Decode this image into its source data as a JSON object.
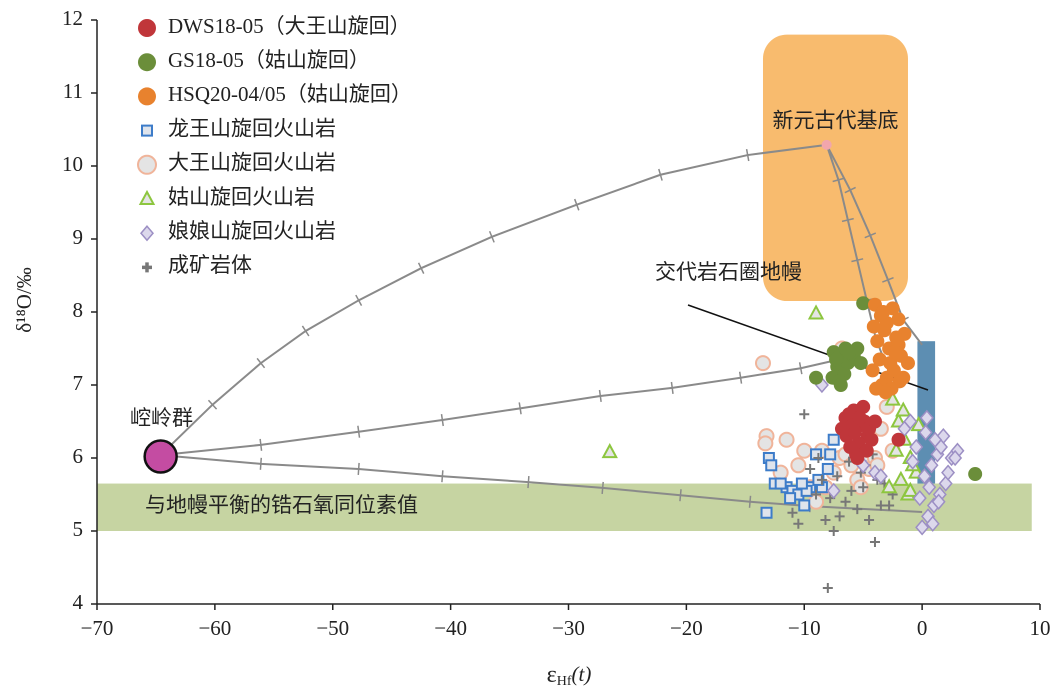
{
  "chart_data": {
    "type": "scatter",
    "xlim": [
      -70,
      10
    ],
    "ylim": [
      4,
      12
    ],
    "xticks": [
      {
        "value": -70,
        "label": "−70"
      },
      {
        "value": -60,
        "label": "−60"
      },
      {
        "value": -50,
        "label": "−50"
      },
      {
        "value": -40,
        "label": "−40"
      },
      {
        "value": -30,
        "label": "−30"
      },
      {
        "value": -20,
        "label": "−20"
      },
      {
        "value": -10,
        "label": "−10"
      },
      0,
      10
    ],
    "yticks": [
      4,
      5,
      6,
      7,
      8,
      9,
      10,
      11,
      12
    ],
    "x_label": {
      "symbol": "ε",
      "subscript": "Hf",
      "suffix": "(t)"
    },
    "y_label": "δ¹⁸O/‰",
    "regions": [
      {
        "label": "新元古代基底",
        "color": "#f8bb6e",
        "xlim": [
          -13.5,
          -1.2
        ],
        "ylim": [
          8.15,
          11.8
        ]
      },
      {
        "label": "与地幔平衡的锆石氧同位素值",
        "color": "#c6d4a2",
        "xlim": [
          -70,
          9.3
        ],
        "ylim": [
          5.0,
          5.65
        ]
      },
      {
        "color": "#5d8eb2",
        "xlim": [
          -0.4,
          1.1
        ],
        "ylim": [
          5.65,
          7.6
        ]
      }
    ],
    "curves": [
      {
        "color": "#8a8a8a",
        "x": [
          -64.6,
          -60.2,
          -56.1,
          -52.3,
          -47.8,
          -42.5,
          -36.5,
          -29.3,
          -22.2,
          -14.8,
          -8.1
        ],
        "values": [
          6.04,
          6.73,
          7.3,
          7.74,
          8.16,
          8.6,
          9.03,
          9.47,
          9.88,
          10.15,
          10.29
        ]
      },
      {
        "color": "#8a8a8a",
        "x": [
          -64.6,
          -56.1,
          -47.8,
          -40.7,
          -34.1,
          -27.3,
          -21.2,
          -15.4,
          -10.3,
          -6.5
        ],
        "values": [
          6.04,
          6.18,
          6.36,
          6.52,
          6.68,
          6.85,
          6.96,
          7.1,
          7.23,
          7.37
        ]
      },
      {
        "color": "#8a8a8a",
        "x": [
          -64.6,
          -56.1,
          -47.8,
          -40.7,
          -33.4,
          -27.1,
          -20.5,
          -14.6,
          -9.5,
          0
        ],
        "values": [
          6.04,
          5.92,
          5.85,
          5.75,
          5.67,
          5.59,
          5.49,
          5.4,
          5.34,
          5.26
        ]
      },
      {
        "color": "#8a8a8a",
        "x": [
          -8.1,
          -6.1,
          -4.4,
          -2.9,
          -1.6,
          0
        ],
        "values": [
          10.29,
          9.67,
          9.05,
          8.44,
          7.89,
          7.55
        ]
      },
      {
        "color": "#8a8a8a",
        "x": [
          -8.1,
          -7.1,
          -6.3,
          -5.5,
          -4.7,
          -3.9,
          -2.7
        ],
        "values": [
          10.29,
          9.81,
          9.26,
          8.71,
          8.16,
          7.62,
          7.14
        ]
      }
    ],
    "end_members": [
      {
        "label": "崆岭群",
        "color": "#c44ca2",
        "x": -64.6,
        "y": 6.02
      },
      {
        "color": "#f2a6ac",
        "x": -8.1,
        "y": 10.29
      }
    ],
    "annotation": "交代岩石圈地幔",
    "series": [
      {
        "name": "DWS18-05（大王山旋回）",
        "marker": "circle",
        "color": "#c0363a",
        "x": [
          -6.5,
          -5.8,
          -5.2,
          -4.6,
          -6.0,
          -5.4,
          -4.9,
          -6.8,
          -5.6,
          -4.3,
          -6.2,
          -5.0,
          -4.7,
          -5.9,
          -6.4,
          -5.3,
          -4.5,
          -6.1,
          -5.7,
          -2.0,
          -4.0,
          -5.5
        ],
        "values": [
          6.55,
          6.65,
          6.45,
          6.3,
          6.35,
          6.2,
          6.5,
          6.4,
          6.05,
          6.25,
          6.6,
          6.7,
          6.1,
          6.45,
          6.3,
          6.55,
          6.4,
          6.15,
          6.35,
          6.25,
          6.5,
          6.0
        ]
      },
      {
        "name": "GS18-05（姑山旋回）",
        "marker": "circle",
        "color": "#6b8e3a",
        "x": [
          -7.5,
          -7.0,
          -6.5,
          -6.0,
          -7.2,
          -6.8,
          -6.3,
          -5.8,
          -7.6,
          -6.6,
          -7.0,
          -5.5,
          -6.2,
          -7.3,
          -5.0,
          -9.0,
          -5.2,
          4.5,
          -6.9
        ],
        "values": [
          7.45,
          7.4,
          7.5,
          7.35,
          7.25,
          7.2,
          7.3,
          7.4,
          7.1,
          7.15,
          7.05,
          7.5,
          7.45,
          7.35,
          8.12,
          7.1,
          7.3,
          5.78,
          7.0
        ]
      },
      {
        "name": "HSQ20-04/05（姑山旋回）",
        "marker": "circle",
        "color": "#e8822e",
        "x": [
          -4.0,
          -3.5,
          -3.0,
          -2.5,
          -2.0,
          -1.5,
          -3.8,
          -3.2,
          -2.8,
          -2.2,
          -1.8,
          -1.2,
          -4.2,
          -3.6,
          -3.0,
          -2.4,
          -1.9,
          -3.4,
          -2.6,
          -2.0,
          -4.1,
          -3.3,
          -2.7,
          -1.6,
          -3.9,
          -2.3,
          -3.1
        ],
        "values": [
          8.1,
          7.95,
          7.85,
          8.05,
          7.9,
          7.7,
          7.6,
          7.75,
          7.5,
          7.65,
          7.4,
          7.3,
          7.2,
          7.35,
          7.1,
          7.2,
          7.05,
          7.0,
          6.95,
          7.55,
          7.8,
          8.0,
          7.3,
          7.1,
          6.95,
          7.45,
          6.9
        ]
      },
      {
        "name": "龙王山旋回火山岩",
        "marker": "square",
        "color": "#3d7cc9",
        "fill": "#dfe4ec",
        "x": [
          -13,
          -12.5,
          -11.5,
          -11,
          -10.5,
          -10,
          -9.5,
          -9,
          -8.5,
          -8,
          -7.5,
          -12,
          -13.2,
          -11.2,
          -9.8,
          -8.8,
          -7.8,
          -12.8,
          -10.2
        ],
        "values": [
          6.0,
          5.65,
          5.6,
          5.55,
          5.5,
          5.35,
          5.6,
          6.05,
          5.6,
          5.85,
          6.25,
          5.65,
          5.25,
          5.45,
          5.55,
          5.7,
          6.05,
          5.9,
          5.65
        ]
      },
      {
        "name": "大王山旋回火山岩",
        "marker": "circle",
        "color": "#f0b49a",
        "fill": "#e4e4e4",
        "x": [
          -13.5,
          -13.2,
          -12,
          -11.5,
          -10.5,
          -10,
          -9.5,
          -8.5,
          -8.2,
          -7.5,
          -7,
          -6.5,
          -6,
          -5.5,
          -5,
          -4.5,
          -4,
          -3.5,
          -3,
          -2.5,
          -13.3,
          -9,
          -6.8,
          -5.2,
          -3.8
        ],
        "values": [
          7.3,
          6.3,
          5.8,
          6.25,
          5.9,
          6.1,
          5.6,
          6.1,
          5.6,
          5.8,
          6.0,
          6.05,
          5.9,
          5.7,
          5.95,
          5.85,
          6.0,
          6.4,
          6.7,
          6.1,
          6.2,
          5.4,
          7.5,
          5.6,
          5.9
        ]
      },
      {
        "name": "姑山旋回火山岩",
        "marker": "triangle",
        "color": "#8dc63f",
        "fill": "#e4e4e4",
        "x": [
          -26.5,
          -9,
          -2.5,
          -2,
          -1.5,
          -1,
          -0.5,
          -2.8,
          -1.8,
          -1.2,
          -0.8,
          -2.2,
          -1.6,
          -0.3,
          -1.0
        ],
        "values": [
          6.08,
          7.98,
          6.8,
          6.5,
          6.25,
          6.0,
          5.8,
          5.6,
          5.7,
          5.5,
          5.9,
          6.1,
          6.65,
          6.45,
          5.55
        ]
      },
      {
        "name": "娘娘山旋回火山岩",
        "marker": "diamond",
        "color": "#9c8fc4",
        "fill": "#dcd8ec",
        "x": [
          0,
          0.5,
          1,
          1.5,
          2,
          2.5,
          3,
          0.2,
          0.8,
          1.3,
          1.8,
          -0.5,
          -1,
          -1.5,
          0.4,
          1.1,
          2.2,
          -0.2,
          0.6,
          1.6,
          -8.5,
          -7.5,
          -4,
          -3.5,
          -5,
          0.3,
          0.9,
          2.8,
          -0.8,
          1.4
        ],
        "values": [
          5.05,
          5.2,
          5.35,
          5.5,
          5.65,
          6.0,
          6.1,
          5.75,
          5.9,
          6.05,
          6.3,
          6.15,
          6.5,
          6.4,
          6.55,
          6.25,
          5.8,
          5.45,
          5.6,
          6.15,
          7.0,
          5.55,
          5.8,
          5.75,
          5.9,
          6.35,
          5.1,
          6.0,
          5.95,
          5.4
        ]
      },
      {
        "name": "成矿岩体",
        "marker": "plus",
        "color": "#777777",
        "x": [
          -8,
          -7.5,
          -7,
          -6.5,
          -6,
          -5.5,
          -5,
          -4.5,
          -4,
          -3.5,
          -9,
          -10,
          -9.5,
          -8.5,
          -7.8,
          -6.8,
          -6.2,
          -5.2,
          -4.2,
          -3.2,
          -2.8,
          -10.5,
          -11,
          -8.2,
          -7.2,
          -5.8,
          -4.8,
          -3.8,
          -2.5,
          -8.8
        ],
        "values": [
          4.22,
          5.0,
          5.2,
          5.4,
          5.55,
          5.3,
          5.6,
          5.15,
          4.85,
          5.35,
          5.5,
          6.6,
          5.85,
          5.7,
          5.45,
          6.35,
          5.95,
          5.8,
          6.05,
          5.65,
          5.35,
          5.1,
          5.25,
          5.15,
          5.75,
          6.1,
          5.9,
          5.7,
          5.5,
          6.0
        ]
      }
    ]
  }
}
